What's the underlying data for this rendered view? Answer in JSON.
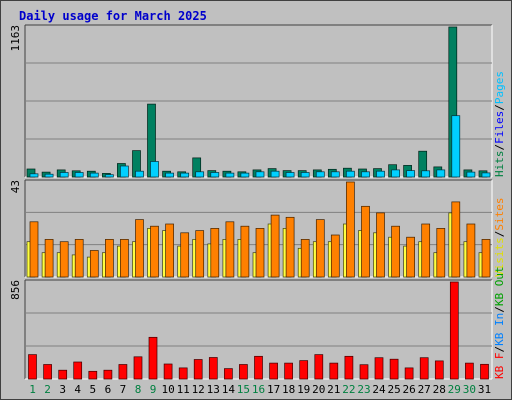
{
  "title": "Daily usage for March 2025",
  "chart_data": {
    "type": "bar",
    "categories": [
      "1",
      "2",
      "3",
      "4",
      "5",
      "6",
      "7",
      "8",
      "9",
      "10",
      "11",
      "12",
      "13",
      "14",
      "15",
      "16",
      "17",
      "18",
      "19",
      "20",
      "21",
      "22",
      "23",
      "24",
      "25",
      "26",
      "27",
      "28",
      "29",
      "30",
      "31"
    ],
    "weekend_days": [
      "1",
      "2",
      "8",
      "9",
      "15",
      "16",
      "22",
      "23",
      "29",
      "30"
    ],
    "panels": [
      {
        "name": "hits-files-pages",
        "max_label": "1163",
        "ylim": [
          0,
          1163
        ],
        "legend": [
          {
            "text": "Hits",
            "color": "#008040"
          },
          {
            "text": "Files",
            "color": "#0000ff"
          },
          {
            "text": "Pages",
            "color": "#00c0ff"
          }
        ],
        "legend_separator": "/",
        "series": [
          {
            "name": "Hits",
            "color": "#008060",
            "values": [
              62,
              38,
              55,
              48,
              45,
              28,
              105,
              205,
              565,
              45,
              40,
              148,
              50,
              45,
              40,
              55,
              65,
              50,
              50,
              55,
              60,
              68,
              62,
              65,
              95,
              90,
              200,
              78,
              1163,
              55,
              48
            ]
          },
          {
            "name": "Files",
            "color": "#00d0ff",
            "values": [
              25,
              22,
              35,
              35,
              30,
              18,
              85,
              45,
              120,
              30,
              30,
              40,
              35,
              30,
              30,
              40,
              45,
              35,
              35,
              40,
              40,
              45,
              40,
              45,
              55,
              50,
              48,
              55,
              475,
              38,
              32
            ]
          }
        ]
      },
      {
        "name": "visits-sites",
        "max_label": "43",
        "ylim": [
          0,
          43
        ],
        "legend": [
          {
            "text": "Visits",
            "color": "#e0e000"
          },
          {
            "text": "Sites",
            "color": "#ff8000"
          }
        ],
        "legend_separator": "/",
        "series": [
          {
            "name": "Visits",
            "color": "#ffff40",
            "values": [
              16,
              11,
              11,
              10,
              9,
              11,
              14,
              16,
              22,
              21,
              14,
              17,
              15,
              17,
              17,
              11,
              24,
              22,
              13,
              16,
              16,
              24,
              21,
              20,
              18,
              14,
              16,
              11,
              29,
              16,
              11
            ]
          },
          {
            "name": "Sites",
            "color": "#ff8000",
            "values": [
              25,
              17,
              16,
              17,
              12,
              17,
              17,
              26,
              23,
              24,
              20,
              21,
              22,
              25,
              23,
              22,
              28,
              27,
              17,
              26,
              19,
              43,
              32,
              29,
              23,
              18,
              24,
              22,
              34,
              24,
              17
            ]
          }
        ]
      },
      {
        "name": "kbytes",
        "max_label": "856",
        "ylim": [
          0,
          856
        ],
        "legend": [
          {
            "text": "KB F",
            "color": "#ff0000"
          },
          {
            "text": "KB In",
            "color": "#0080ff"
          },
          {
            "text": "KB Out",
            "color": "#00a000"
          }
        ],
        "legend_separator": "/",
        "series": [
          {
            "name": "KB F",
            "color": "#ff0000",
            "values": [
              215,
              128,
              78,
              150,
              68,
              78,
              128,
              196,
              368,
              132,
              98,
              172,
              190,
              92,
              128,
              200,
              140,
              140,
              162,
              215,
              140,
              200,
              126,
              188,
              175,
              98,
              188,
              160,
              856,
              140,
              130
            ]
          }
        ]
      }
    ]
  },
  "colors": {
    "background": "#c0c0c0",
    "plot_area": "#c0c0c0",
    "gridline": "#808080",
    "frame_dark": "#404040",
    "day_normal": "#000000",
    "day_weekend": "#008040"
  }
}
